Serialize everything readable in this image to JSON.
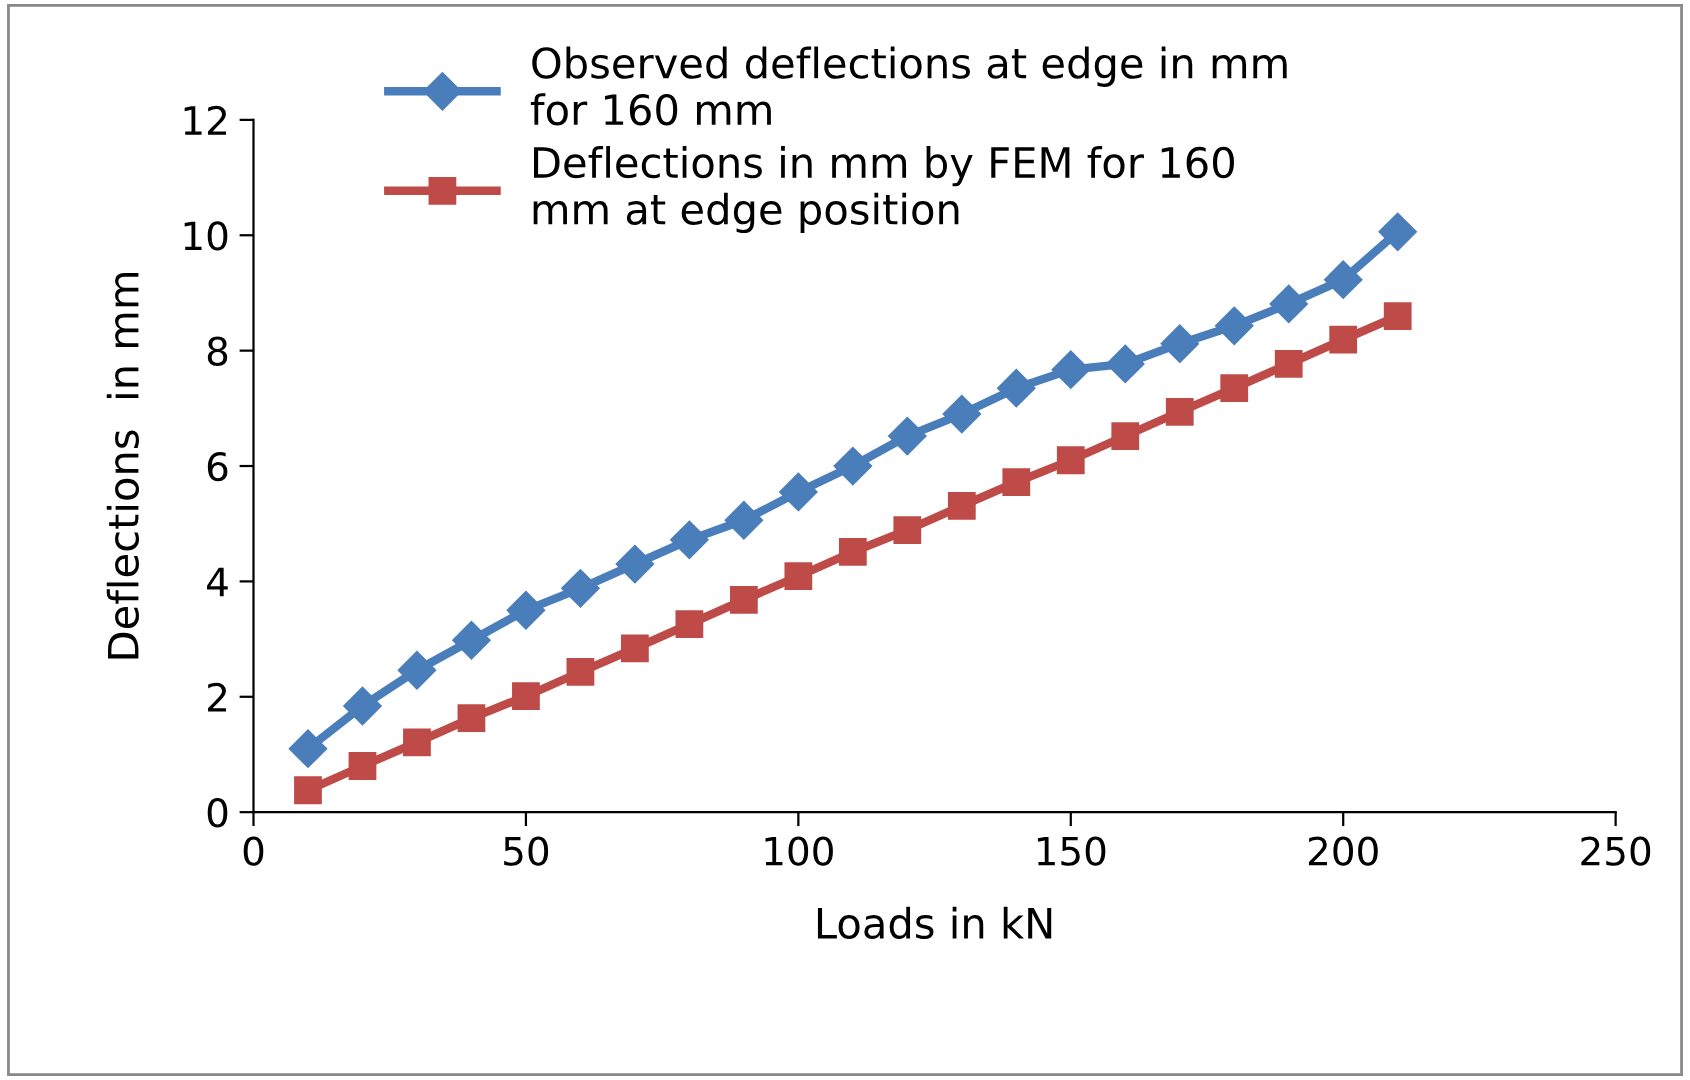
{
  "chart_data": {
    "type": "line",
    "xlabel": "Loads in kN",
    "ylabel": "Deflections  in mm",
    "x": [
      10,
      20,
      30,
      40,
      50,
      60,
      70,
      80,
      90,
      100,
      110,
      120,
      130,
      140,
      150,
      160,
      170,
      180,
      190,
      200,
      210
    ],
    "series": [
      {
        "name": "Observed deflections at edge in mm for 160 mm",
        "color": "#4a7ebb",
        "marker": "diamond",
        "values": [
          1.1,
          1.84,
          2.46,
          2.98,
          3.5,
          3.88,
          4.3,
          4.72,
          5.06,
          5.55,
          6.0,
          6.52,
          6.9,
          7.35,
          7.67,
          7.77,
          8.12,
          8.43,
          8.81,
          9.23,
          10.06
        ]
      },
      {
        "name": "Deflections in mm by FEM for 160 mm at edge position",
        "color": "#be4b48",
        "marker": "square",
        "values": [
          0.38,
          0.8,
          1.21,
          1.63,
          2.01,
          2.43,
          2.84,
          3.26,
          3.68,
          4.09,
          4.51,
          4.89,
          5.31,
          5.72,
          6.1,
          6.52,
          6.94,
          7.35,
          7.77,
          8.19,
          8.6
        ]
      }
    ],
    "xlim": [
      0,
      250
    ],
    "xticks": [
      0,
      50,
      100,
      150,
      200,
      250
    ],
    "ylim": [
      0,
      12
    ],
    "yticks": [
      0,
      2,
      4,
      6,
      8,
      10,
      12
    ],
    "grid": false,
    "legend": "top",
    "line_style": "solid"
  }
}
